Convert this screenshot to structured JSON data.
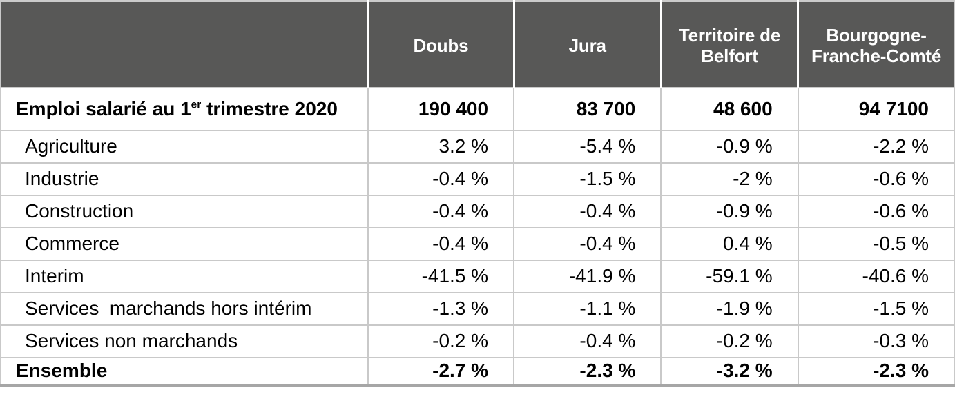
{
  "colors": {
    "header_bg": "#585857",
    "header_text": "#ffffff",
    "grid_line": "#c9c9c9",
    "top_border": "#cbcbcb",
    "bottom_border": "#a6a6a6",
    "body_text": "#000000"
  },
  "chart_data": {
    "type": "table",
    "title": "",
    "columns": [
      "",
      "Doubs",
      "Jura",
      "Territoire de Belfort",
      "Bourgogne-Franche-Comté"
    ],
    "rows": [
      {
        "label": "Emploi salarié au 1er trimestre 2020",
        "label_parts": [
          "Emploi salarié au 1",
          "er",
          " trimestre 2020"
        ],
        "bold": true,
        "values": [
          "190 400",
          "83 700",
          "48 600",
          "94 7100"
        ]
      },
      {
        "label": "Agriculture",
        "bold": false,
        "values": [
          "3.2 %",
          "-5.4 %",
          "-0.9 %",
          "-2.2 %"
        ]
      },
      {
        "label": "Industrie",
        "bold": false,
        "values": [
          "-0.4 %",
          "-1.5 %",
          "-2 %",
          "-0.6 %"
        ]
      },
      {
        "label": "Construction",
        "bold": false,
        "values": [
          "-0.4 %",
          "-0.4 %",
          "-0.9 %",
          "-0.6 %"
        ]
      },
      {
        "label": "Commerce",
        "bold": false,
        "values": [
          "-0.4 %",
          "-0.4 %",
          "0.4 %",
          "-0.5 %"
        ]
      },
      {
        "label": "Interim",
        "bold": false,
        "values": [
          "-41.5 %",
          "-41.9 %",
          "-59.1 %",
          "-40.6 %"
        ]
      },
      {
        "label": "Services  marchands hors intérim",
        "bold": false,
        "values": [
          "-1.3 %",
          "-1.1 %",
          "-1.9 %",
          "-1.5 %"
        ]
      },
      {
        "label": "Services non marchands",
        "bold": false,
        "values": [
          "-0.2 %",
          "-0.4 %",
          "-0.2 %",
          "-0.3 %"
        ]
      },
      {
        "label": "Ensemble",
        "bold": true,
        "values": [
          "-2.7 %",
          "-2.3 %",
          "-3.2 %",
          "-2.3 %"
        ]
      }
    ],
    "units": "percent change except first row (employment counts)",
    "layout": {
      "grid": true,
      "header_position": "top",
      "value_alignment": "right"
    }
  }
}
